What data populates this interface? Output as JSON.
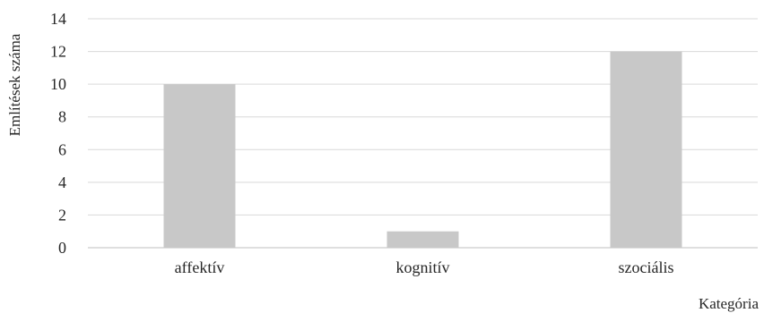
{
  "chart_data": {
    "type": "bar",
    "categories": [
      "affektív",
      "kognitív",
      "szociális"
    ],
    "values": [
      10,
      1,
      12
    ],
    "title": "",
    "xlabel": "Kategória",
    "ylabel": "Említések száma",
    "ylim": [
      0,
      14
    ],
    "yticks": [
      0,
      2,
      4,
      6,
      8,
      10,
      12,
      14
    ],
    "grid": true,
    "legend": "none",
    "bar_color": "#c8c8c8"
  }
}
